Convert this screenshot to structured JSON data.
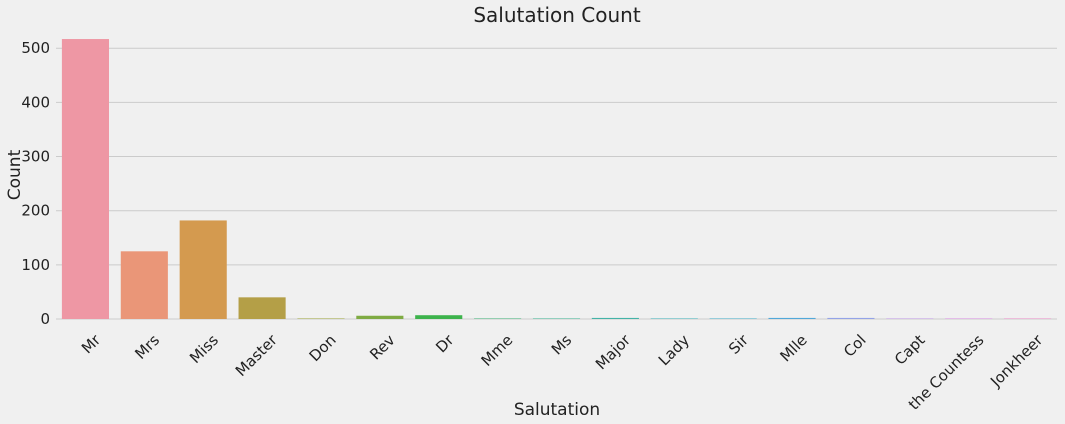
{
  "chart_data": {
    "type": "bar",
    "title": "Salutation Count",
    "xlabel": "Salutation",
    "ylabel": "Count",
    "categories": [
      "Mr",
      "Mrs",
      "Miss",
      "Master",
      "Don",
      "Rev",
      "Dr",
      "Mme",
      "Ms",
      "Major",
      "Lady",
      "Sir",
      "Mlle",
      "Col",
      "Capt",
      "the Countess",
      "Jonkheer"
    ],
    "values": [
      517,
      125,
      182,
      40,
      1,
      6,
      7,
      1,
      1,
      2,
      1,
      1,
      2,
      2,
      1,
      1,
      1
    ],
    "colors": [
      "#ee97a4",
      "#ea9678",
      "#d49a4f",
      "#b49f47",
      "#9ea544",
      "#7fab43",
      "#3db34c",
      "#45b27a",
      "#43b394",
      "#44b3a7",
      "#45b1b8",
      "#48aec7",
      "#52a8d9",
      "#94a3e7",
      "#c09ae6",
      "#d88fe2",
      "#e98fc7"
    ],
    "ylim": [
      0,
      530
    ],
    "yticks": [
      0,
      100,
      200,
      300,
      400,
      500
    ],
    "grid": true,
    "background": "#f0f0f0"
  }
}
